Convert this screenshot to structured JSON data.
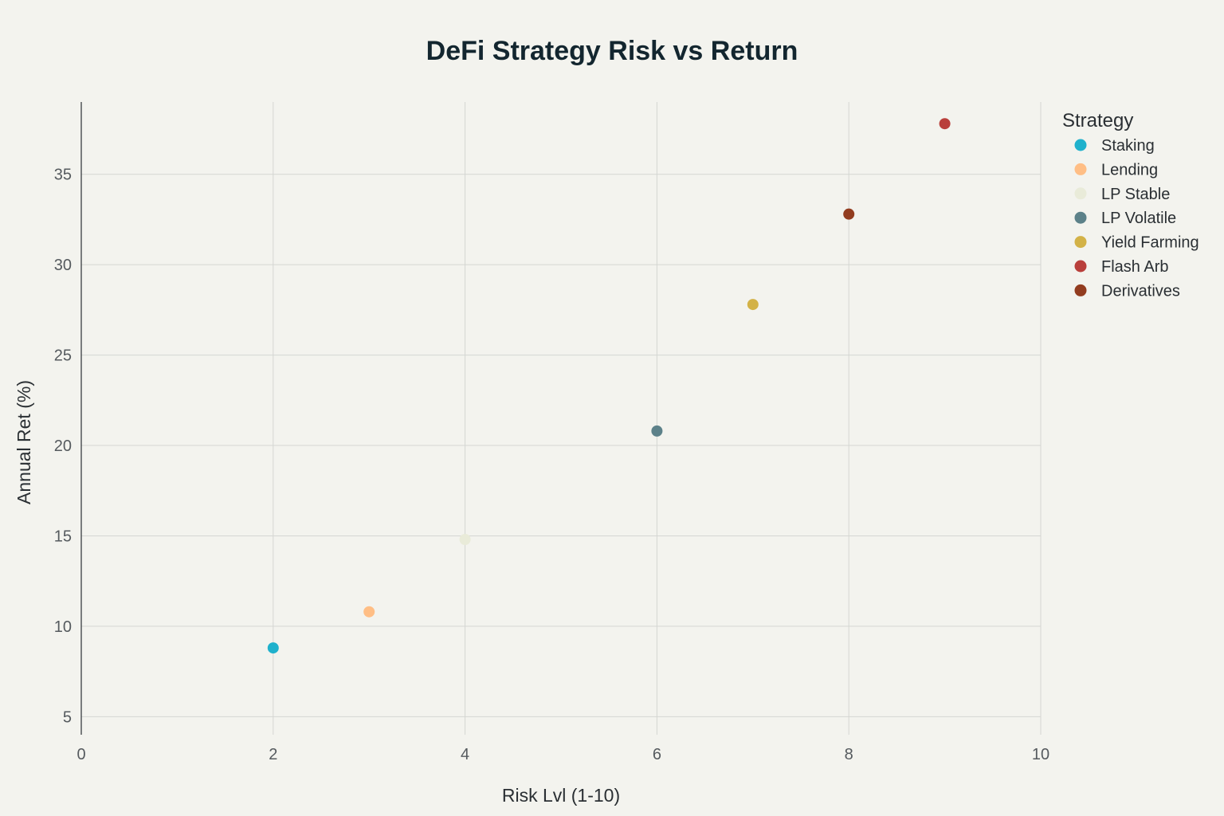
{
  "chart_data": {
    "type": "scatter",
    "title": "DeFi Strategy Risk vs Return",
    "xlabel": "Risk Lvl (1-10)",
    "ylabel": "Annual Ret (%)",
    "xlim": [
      0,
      10
    ],
    "ylim": [
      4,
      39
    ],
    "xticks": [
      0,
      2,
      4,
      6,
      8,
      10
    ],
    "yticks": [
      5,
      10,
      15,
      20,
      25,
      30,
      35
    ],
    "grid": true,
    "legend": {
      "title": "Strategy",
      "placement": "right"
    },
    "series": [
      {
        "name": "Staking",
        "color": "#1fb1cc",
        "points": [
          {
            "x": 2,
            "y": 8.8
          }
        ]
      },
      {
        "name": "Lending",
        "color": "#ffbe85",
        "points": [
          {
            "x": 3,
            "y": 10.8
          }
        ]
      },
      {
        "name": "LP Stable",
        "color": "#e9ebd9",
        "points": [
          {
            "x": 4,
            "y": 14.8
          }
        ]
      },
      {
        "name": "LP Volatile",
        "color": "#5c8189",
        "points": [
          {
            "x": 6,
            "y": 20.8
          }
        ]
      },
      {
        "name": "Yield Farming",
        "color": "#d3b247",
        "points": [
          {
            "x": 7,
            "y": 27.8
          }
        ]
      },
      {
        "name": "Flash Arb",
        "color": "#b93f3b",
        "points": [
          {
            "x": 9,
            "y": 37.8
          }
        ]
      },
      {
        "name": "Derivatives",
        "color": "#923c1f",
        "points": [
          {
            "x": 8,
            "y": 32.8
          }
        ]
      }
    ]
  }
}
